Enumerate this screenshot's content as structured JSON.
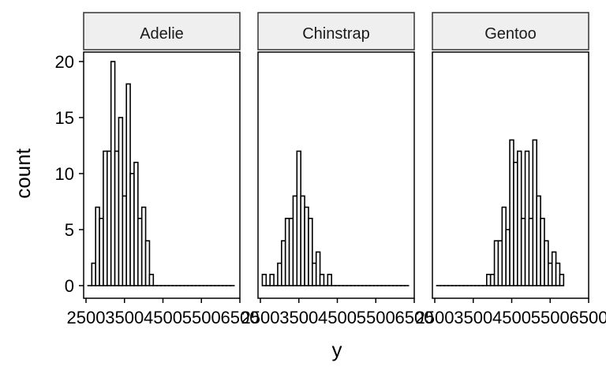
{
  "chart_data": {
    "type": "bar",
    "chart_kind": "faceted-histogram",
    "xlabel": "y",
    "ylabel": "count",
    "xlim": [
      2500,
      6500
    ],
    "ylim": [
      0,
      20
    ],
    "bin_width": 100,
    "x_ticks": [
      2500,
      3500,
      4500,
      5500,
      6500
    ],
    "x_tick_labels": [
      "2500",
      "3500",
      "4500",
      "5500",
      "6500"
    ],
    "y_ticks": [
      0,
      5,
      10,
      15,
      20
    ],
    "y_tick_labels": [
      "0",
      "5",
      "10",
      "15",
      "20"
    ],
    "grid": false,
    "strip_fill": "#efefef",
    "bar_fill": "#ffffff",
    "bar_stroke": "#000000",
    "facets": [
      {
        "name": "Adelie",
        "bins": [
          {
            "x": 2600,
            "count": 0
          },
          {
            "x": 2700,
            "count": 2
          },
          {
            "x": 2800,
            "count": 7
          },
          {
            "x": 2900,
            "count": 6
          },
          {
            "x": 3000,
            "count": 12
          },
          {
            "x": 3100,
            "count": 12
          },
          {
            "x": 3200,
            "count": 20
          },
          {
            "x": 3300,
            "count": 12
          },
          {
            "x": 3400,
            "count": 15
          },
          {
            "x": 3500,
            "count": 8
          },
          {
            "x": 3600,
            "count": 18
          },
          {
            "x": 3700,
            "count": 10
          },
          {
            "x": 3800,
            "count": 11
          },
          {
            "x": 3900,
            "count": 6
          },
          {
            "x": 4000,
            "count": 7
          },
          {
            "x": 4100,
            "count": 4
          },
          {
            "x": 4200,
            "count": 1
          },
          {
            "x": 4300,
            "count": 0
          },
          {
            "x": 4400,
            "count": 0
          },
          {
            "x": 4500,
            "count": 0
          },
          {
            "x": 4600,
            "count": 0
          },
          {
            "x": 4700,
            "count": 0
          },
          {
            "x": 4800,
            "count": 0
          },
          {
            "x": 4900,
            "count": 0
          },
          {
            "x": 5000,
            "count": 0
          },
          {
            "x": 5100,
            "count": 0
          },
          {
            "x": 5200,
            "count": 0
          },
          {
            "x": 5300,
            "count": 0
          },
          {
            "x": 5400,
            "count": 0
          },
          {
            "x": 5500,
            "count": 0
          },
          {
            "x": 5600,
            "count": 0
          },
          {
            "x": 5700,
            "count": 0
          },
          {
            "x": 5800,
            "count": 0
          },
          {
            "x": 5900,
            "count": 0
          },
          {
            "x": 6000,
            "count": 0
          },
          {
            "x": 6100,
            "count": 0
          },
          {
            "x": 6200,
            "count": 0
          },
          {
            "x": 6300,
            "count": 0
          }
        ]
      },
      {
        "name": "Chinstrap",
        "bins": [
          {
            "x": 2600,
            "count": 1
          },
          {
            "x": 2700,
            "count": 0
          },
          {
            "x": 2800,
            "count": 1
          },
          {
            "x": 2900,
            "count": 0
          },
          {
            "x": 3000,
            "count": 2
          },
          {
            "x": 3100,
            "count": 4
          },
          {
            "x": 3200,
            "count": 6
          },
          {
            "x": 3300,
            "count": 6
          },
          {
            "x": 3400,
            "count": 8
          },
          {
            "x": 3500,
            "count": 12
          },
          {
            "x": 3600,
            "count": 8
          },
          {
            "x": 3700,
            "count": 7
          },
          {
            "x": 3800,
            "count": 6
          },
          {
            "x": 3900,
            "count": 2
          },
          {
            "x": 4000,
            "count": 3
          },
          {
            "x": 4100,
            "count": 1
          },
          {
            "x": 4200,
            "count": 0
          },
          {
            "x": 4300,
            "count": 1
          },
          {
            "x": 4400,
            "count": 0
          },
          {
            "x": 4500,
            "count": 0
          },
          {
            "x": 4600,
            "count": 0
          },
          {
            "x": 4700,
            "count": 0
          },
          {
            "x": 4800,
            "count": 0
          },
          {
            "x": 4900,
            "count": 0
          },
          {
            "x": 5000,
            "count": 0
          },
          {
            "x": 5100,
            "count": 0
          },
          {
            "x": 5200,
            "count": 0
          },
          {
            "x": 5300,
            "count": 0
          },
          {
            "x": 5400,
            "count": 0
          },
          {
            "x": 5500,
            "count": 0
          },
          {
            "x": 5600,
            "count": 0
          },
          {
            "x": 5700,
            "count": 0
          },
          {
            "x": 5800,
            "count": 0
          },
          {
            "x": 5900,
            "count": 0
          },
          {
            "x": 6000,
            "count": 0
          },
          {
            "x": 6100,
            "count": 0
          },
          {
            "x": 6200,
            "count": 0
          },
          {
            "x": 6300,
            "count": 0
          }
        ]
      },
      {
        "name": "Gentoo",
        "bins": [
          {
            "x": 2600,
            "count": 0
          },
          {
            "x": 2700,
            "count": 0
          },
          {
            "x": 2800,
            "count": 0
          },
          {
            "x": 2900,
            "count": 0
          },
          {
            "x": 3000,
            "count": 0
          },
          {
            "x": 3100,
            "count": 0
          },
          {
            "x": 3200,
            "count": 0
          },
          {
            "x": 3300,
            "count": 0
          },
          {
            "x": 3400,
            "count": 0
          },
          {
            "x": 3500,
            "count": 0
          },
          {
            "x": 3600,
            "count": 0
          },
          {
            "x": 3700,
            "count": 0
          },
          {
            "x": 3800,
            "count": 0
          },
          {
            "x": 3900,
            "count": 1
          },
          {
            "x": 4000,
            "count": 1
          },
          {
            "x": 4100,
            "count": 4
          },
          {
            "x": 4200,
            "count": 4
          },
          {
            "x": 4300,
            "count": 7
          },
          {
            "x": 4400,
            "count": 5
          },
          {
            "x": 4500,
            "count": 13
          },
          {
            "x": 4600,
            "count": 11
          },
          {
            "x": 4700,
            "count": 12
          },
          {
            "x": 4800,
            "count": 6
          },
          {
            "x": 4900,
            "count": 12
          },
          {
            "x": 5000,
            "count": 6
          },
          {
            "x": 5100,
            "count": 13
          },
          {
            "x": 5200,
            "count": 8
          },
          {
            "x": 5300,
            "count": 6
          },
          {
            "x": 5400,
            "count": 4
          },
          {
            "x": 5500,
            "count": 2
          },
          {
            "x": 5600,
            "count": 3
          },
          {
            "x": 5700,
            "count": 2
          },
          {
            "x": 5800,
            "count": 1
          }
        ]
      }
    ]
  }
}
